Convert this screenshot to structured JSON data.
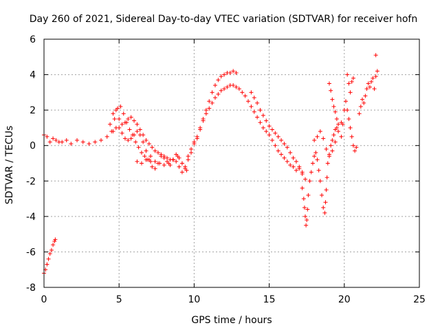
{
  "chart_data": {
    "type": "scatter",
    "title": "Day 260 of 2021, Sidereal Day-to-day VTEC variation (SDTVAR) for receiver hofn",
    "xlabel": "GPS time / hours",
    "ylabel": "SDTVAR / TECUs",
    "xlim": [
      0,
      25
    ],
    "ylim": [
      -8,
      6
    ],
    "xticks": [
      0,
      5,
      10,
      15,
      20,
      25
    ],
    "yticks": [
      -8,
      -6,
      -4,
      -2,
      0,
      2,
      4,
      6
    ],
    "grid": true,
    "marker": "+",
    "color": "#ff0000",
    "series": [
      {
        "name": "SDTVAR",
        "x": [
          0.0,
          0.1,
          0.2,
          0.3,
          0.4,
          0.5,
          0.6,
          0.7,
          0.75,
          0.0,
          0.2,
          0.4,
          0.6,
          0.8,
          1.0,
          1.2,
          1.5,
          1.8,
          2.2,
          2.6,
          3.0,
          3.4,
          3.8,
          4.2,
          4.4,
          4.6,
          4.8,
          5.0,
          5.2,
          5.4,
          5.6,
          5.8,
          6.0,
          6.2,
          6.4,
          6.6,
          6.8,
          7.0,
          7.2,
          7.4,
          7.6,
          7.8,
          8.0,
          8.2,
          8.4,
          8.6,
          8.8,
          9.0,
          9.2,
          9.4,
          9.6,
          9.8,
          10.0,
          10.2,
          10.4,
          10.6,
          10.8,
          11.0,
          11.2,
          11.4,
          11.6,
          11.8,
          12.0,
          12.2,
          12.4,
          12.6,
          12.8,
          4.5,
          4.7,
          4.9,
          5.1,
          5.3,
          5.5,
          5.7,
          5.9,
          6.1,
          6.3,
          6.5,
          6.7,
          6.9,
          7.1,
          6.2,
          6.5,
          6.8,
          7.1,
          7.4,
          7.7,
          8.0,
          8.3,
          8.6,
          8.9,
          9.2,
          9.5,
          4.6,
          4.8,
          5.0,
          5.2,
          5.4,
          5.6,
          5.8,
          6.0,
          6.2,
          6.4,
          6.6,
          6.8,
          7.0,
          7.2,
          7.4,
          7.6,
          7.8,
          8.0,
          8.2,
          8.4,
          8.6,
          8.8,
          9.0,
          9.2,
          9.4,
          9.6,
          9.8,
          10.0,
          10.2,
          10.4,
          10.6,
          10.8,
          11.0,
          11.2,
          11.4,
          11.6,
          11.8,
          12.0,
          12.2,
          12.4,
          12.6,
          12.8,
          13.0,
          13.2,
          13.4,
          13.6,
          13.8,
          14.0,
          14.2,
          14.4,
          14.6,
          14.8,
          15.0,
          15.2,
          15.4,
          15.6,
          15.8,
          16.0,
          16.2,
          16.4,
          16.6,
          16.8,
          17.0,
          17.2,
          13.8,
          14.0,
          14.2,
          14.4,
          14.6,
          14.8,
          15.0,
          15.2,
          15.4,
          15.6,
          15.8,
          16.0,
          16.2,
          16.4,
          16.6,
          16.8,
          17.0,
          17.2,
          17.4,
          17.2,
          17.3,
          17.35,
          17.4,
          17.45,
          17.5,
          17.55,
          17.6,
          17.7,
          17.8,
          17.9,
          18.0,
          18.1,
          18.2,
          18.3,
          18.4,
          18.5,
          18.6,
          18.7,
          18.75,
          18.8,
          18.85,
          18.9,
          19.0,
          19.1,
          19.2,
          19.3,
          19.4,
          19.5,
          19.6,
          18.0,
          18.2,
          18.4,
          18.6,
          18.8,
          19.0,
          19.2,
          19.4,
          19.6,
          19.8,
          19.0,
          19.1,
          19.2,
          19.3,
          19.4,
          19.5,
          19.8,
          19.9,
          20.0,
          20.1,
          20.2,
          20.3,
          20.4,
          20.5,
          20.6,
          20.7,
          20.8,
          20.2,
          20.3,
          20.4,
          20.5,
          20.6,
          21.0,
          21.1,
          21.2,
          21.3,
          21.4,
          21.5,
          21.6,
          21.7,
          21.8,
          21.9,
          22.0,
          22.1,
          22.2,
          22.1
        ],
        "y": [
          -7.2,
          -7.0,
          -6.7,
          -6.4,
          -6.1,
          -5.9,
          -5.6,
          -5.4,
          -5.3,
          0.6,
          0.5,
          0.2,
          0.4,
          0.3,
          0.2,
          0.2,
          0.3,
          0.1,
          0.3,
          0.2,
          0.1,
          0.2,
          0.3,
          0.5,
          1.2,
          1.8,
          2.0,
          1.5,
          1.2,
          1.3,
          1.5,
          1.6,
          1.4,
          1.2,
          0.9,
          0.6,
          0.3,
          0.1,
          -0.1,
          -0.3,
          -0.4,
          -0.5,
          -0.6,
          -0.7,
          -0.8,
          -0.8,
          -0.9,
          -1.2,
          -1.5,
          -1.3,
          -0.6,
          -0.2,
          0.2,
          0.5,
          1.0,
          1.5,
          2.0,
          2.5,
          3.0,
          3.4,
          3.7,
          3.9,
          4.0,
          4.1,
          4.1,
          4.2,
          4.1,
          0.8,
          1.5,
          2.1,
          2.2,
          1.8,
          1.3,
          0.9,
          0.6,
          0.2,
          -0.1,
          -0.4,
          -0.6,
          -0.8,
          -0.9,
          -0.9,
          -1.0,
          -0.8,
          -0.6,
          -0.9,
          -1.0,
          -1.1,
          -1.0,
          -0.8,
          -0.6,
          -1.0,
          -1.4,
          0.8,
          1.0,
          1.0,
          0.7,
          0.4,
          0.3,
          0.4,
          0.6,
          0.8,
          0.6,
          0.2,
          -0.3,
          -0.8,
          -1.2,
          -1.3,
          -1.0,
          -0.6,
          -0.7,
          -0.9,
          -1.1,
          -0.8,
          -0.5,
          -0.7,
          -1.0,
          -1.2,
          -0.8,
          -0.4,
          0.1,
          0.4,
          0.9,
          1.4,
          1.8,
          2.1,
          2.4,
          2.7,
          2.9,
          3.1,
          3.2,
          3.3,
          3.4,
          3.4,
          3.3,
          3.2,
          3.0,
          2.8,
          2.5,
          2.2,
          1.9,
          1.6,
          1.3,
          1.0,
          0.8,
          0.6,
          0.3,
          0.0,
          -0.3,
          -0.5,
          -0.7,
          -0.9,
          -1.1,
          -1.2,
          -1.4,
          -1.3,
          -1.5,
          3.0,
          2.7,
          2.4,
          2.0,
          1.7,
          1.4,
          1.1,
          0.9,
          0.7,
          0.5,
          0.3,
          0.1,
          -0.1,
          -0.4,
          -0.7,
          -0.9,
          -1.2,
          -1.6,
          -1.9,
          -2.4,
          -3.0,
          -3.5,
          -4.0,
          -4.5,
          -4.2,
          -3.6,
          -2.8,
          -2.0,
          -1.5,
          -1.0,
          -0.6,
          -0.4,
          -0.8,
          -1.4,
          -2.0,
          -2.8,
          -3.5,
          -3.8,
          -3.2,
          -2.5,
          -1.8,
          -1.0,
          -0.5,
          0.0,
          0.3,
          0.6,
          0.9,
          1.0,
          1.2,
          0.3,
          0.5,
          0.8,
          0.4,
          -0.2,
          -0.6,
          -0.3,
          0.2,
          0.8,
          1.3,
          3.5,
          3.1,
          2.6,
          2.2,
          1.9,
          1.5,
          0.5,
          1.2,
          2.0,
          2.5,
          2.0,
          1.5,
          1.0,
          0.5,
          0.0,
          -0.3,
          -0.1,
          4.0,
          3.5,
          3.0,
          3.6,
          3.8,
          1.8,
          2.2,
          2.6,
          2.4,
          2.8,
          3.2,
          3.5,
          3.3,
          3.6,
          3.8,
          3.2,
          3.9,
          4.2,
          5.1
        ],
        "y_repeat_note": ""
      }
    ]
  }
}
